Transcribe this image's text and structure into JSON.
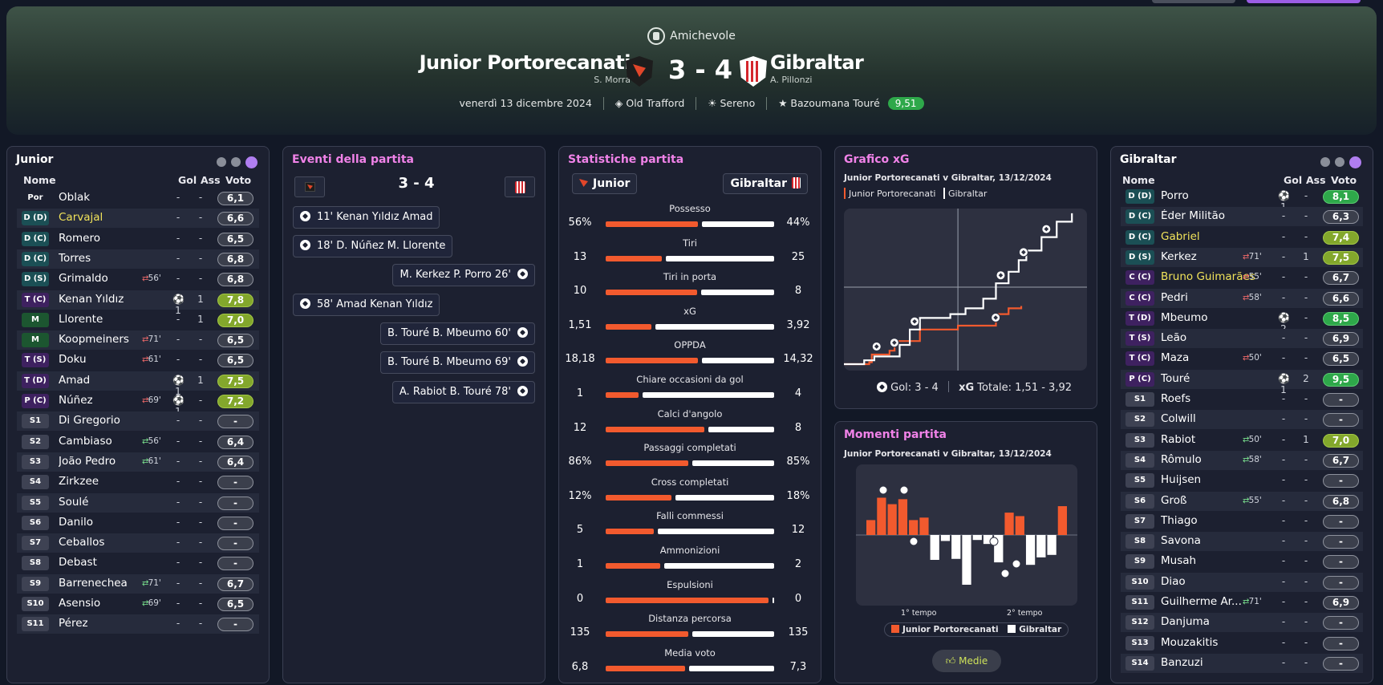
{
  "header": {
    "competition": "Amichevole",
    "home_team": "Junior Portorecanati",
    "home_coach": "S. Morra",
    "away_team": "Gibraltar",
    "away_coach": "A. Pillonzi",
    "score": "3 - 4",
    "date": "venerdì 13 dicembre 2024",
    "stadium": "Old Trafford",
    "weather": "Sereno",
    "potm_name": "Bazoumana Touré",
    "potm_rating": "9,51"
  },
  "home_panel": {
    "title": "Junior",
    "col_name": "Nome",
    "col_goals": "Gol",
    "col_assists": "Ass",
    "col_rating": "Voto",
    "players": [
      {
        "pos": "Por",
        "name": "Oblak",
        "sub": "",
        "goals": "-",
        "assists": "-",
        "rating": "6,1",
        "pc": "gk",
        "rc": "",
        "hl": false
      },
      {
        "pos": "D (D)",
        "name": "Carvajal",
        "sub": "",
        "goals": "-",
        "assists": "-",
        "rating": "6,6",
        "pc": "def",
        "rc": "",
        "hl": true
      },
      {
        "pos": "D (C)",
        "name": "Romero",
        "sub": "",
        "goals": "-",
        "assists": "-",
        "rating": "6,5",
        "pc": "def",
        "rc": "",
        "hl": false
      },
      {
        "pos": "D (C)",
        "name": "Torres",
        "sub": "",
        "goals": "-",
        "assists": "-",
        "rating": "6,8",
        "pc": "def",
        "rc": "",
        "hl": false
      },
      {
        "pos": "D (S)",
        "name": "Grimaldo",
        "sub": "56'",
        "subdir": "out",
        "goals": "-",
        "assists": "-",
        "rating": "6,8",
        "pc": "def",
        "rc": "",
        "hl": false
      },
      {
        "pos": "T (C)",
        "name": "Kenan Yıldız",
        "sub": "",
        "goals": "⚽1",
        "assists": "1",
        "rating": "7,8",
        "pc": "att",
        "rc": "y",
        "hl": false
      },
      {
        "pos": "M",
        "name": "Llorente",
        "sub": "",
        "goals": "-",
        "assists": "1",
        "rating": "7,0",
        "pc": "mid",
        "rc": "y",
        "hl": false
      },
      {
        "pos": "M",
        "name": "Koopmeiners",
        "sub": "71'",
        "subdir": "out",
        "goals": "-",
        "assists": "-",
        "rating": "6,5",
        "pc": "mid",
        "rc": "",
        "hl": false
      },
      {
        "pos": "T (S)",
        "name": "Doku",
        "sub": "61'",
        "subdir": "out",
        "goals": "-",
        "assists": "-",
        "rating": "6,5",
        "pc": "att",
        "rc": "",
        "hl": false
      },
      {
        "pos": "T (D)",
        "name": "Amad",
        "sub": "",
        "goals": "⚽1",
        "assists": "1",
        "rating": "7,5",
        "pc": "att",
        "rc": "y",
        "hl": false
      },
      {
        "pos": "P (C)",
        "name": "Núñez",
        "sub": "69'",
        "subdir": "out",
        "goals": "⚽1",
        "assists": "-",
        "rating": "7,2",
        "pc": "att",
        "rc": "y",
        "hl": false
      },
      {
        "pos": "S1",
        "name": "Di Gregorio",
        "sub": "",
        "goals": "-",
        "assists": "-",
        "rating": "-",
        "pc": "sub",
        "rc": "",
        "hl": false
      },
      {
        "pos": "S2",
        "name": "Cambiaso",
        "sub": "56'",
        "subdir": "in",
        "goals": "-",
        "assists": "-",
        "rating": "6,4",
        "pc": "sub",
        "rc": "",
        "hl": false
      },
      {
        "pos": "S3",
        "name": "João Pedro",
        "sub": "61'",
        "subdir": "in",
        "goals": "-",
        "assists": "-",
        "rating": "6,4",
        "pc": "sub",
        "rc": "",
        "hl": false
      },
      {
        "pos": "S4",
        "name": "Zirkzee",
        "sub": "",
        "goals": "-",
        "assists": "-",
        "rating": "-",
        "pc": "sub",
        "rc": "",
        "hl": false
      },
      {
        "pos": "S5",
        "name": "Soulé",
        "sub": "",
        "goals": "-",
        "assists": "-",
        "rating": "-",
        "pc": "sub",
        "rc": "",
        "hl": false
      },
      {
        "pos": "S6",
        "name": "Danilo",
        "sub": "",
        "goals": "-",
        "assists": "-",
        "rating": "-",
        "pc": "sub",
        "rc": "",
        "hl": false
      },
      {
        "pos": "S7",
        "name": "Ceballos",
        "sub": "",
        "goals": "-",
        "assists": "-",
        "rating": "-",
        "pc": "sub",
        "rc": "",
        "hl": false
      },
      {
        "pos": "S8",
        "name": "Debast",
        "sub": "",
        "goals": "-",
        "assists": "-",
        "rating": "-",
        "pc": "sub",
        "rc": "",
        "hl": false
      },
      {
        "pos": "S9",
        "name": "Barrenechea",
        "sub": "71'",
        "subdir": "in",
        "goals": "-",
        "assists": "-",
        "rating": "6,7",
        "pc": "sub",
        "rc": "",
        "hl": false
      },
      {
        "pos": "S10",
        "name": "Asensio",
        "sub": "69'",
        "subdir": "in",
        "goals": "-",
        "assists": "-",
        "rating": "6,5",
        "pc": "sub",
        "rc": "",
        "hl": false
      },
      {
        "pos": "S11",
        "name": "Pérez",
        "sub": "",
        "goals": "-",
        "assists": "-",
        "rating": "-",
        "pc": "sub",
        "rc": "",
        "hl": false
      }
    ]
  },
  "away_panel": {
    "title": "Gibraltar",
    "col_name": "Nome",
    "col_goals": "Gol",
    "col_assists": "Ass",
    "col_rating": "Voto",
    "players": [
      {
        "pos": "D (D)",
        "name": "Porro",
        "sub": "",
        "goals": "⚽1",
        "assists": "-",
        "rating": "8,1",
        "pc": "def",
        "rc": "g",
        "hl": false
      },
      {
        "pos": "D (C)",
        "name": "Éder Militão",
        "sub": "",
        "goals": "-",
        "assists": "-",
        "rating": "6,3",
        "pc": "def",
        "rc": "",
        "hl": false
      },
      {
        "pos": "D (C)",
        "name": "Gabriel",
        "sub": "",
        "goals": "-",
        "assists": "-",
        "rating": "7,4",
        "pc": "def",
        "rc": "y",
        "hl": true
      },
      {
        "pos": "D (S)",
        "name": "Kerkez",
        "sub": "71'",
        "subdir": "out",
        "goals": "-",
        "assists": "1",
        "rating": "7,5",
        "pc": "def",
        "rc": "y",
        "hl": false
      },
      {
        "pos": "C (C)",
        "name": "Bruno Guimarães",
        "sub": "55'",
        "subdir": "out",
        "goals": "-",
        "assists": "-",
        "rating": "6,7",
        "pc": "att",
        "rc": "",
        "hl": true
      },
      {
        "pos": "C (C)",
        "name": "Pedri",
        "sub": "58'",
        "subdir": "out",
        "goals": "-",
        "assists": "-",
        "rating": "6,6",
        "pc": "att",
        "rc": "",
        "hl": false
      },
      {
        "pos": "T (D)",
        "name": "Mbeumo",
        "sub": "",
        "goals": "⚽2",
        "assists": "-",
        "rating": "8,5",
        "pc": "att",
        "rc": "g",
        "hl": false
      },
      {
        "pos": "T (S)",
        "name": "Leão",
        "sub": "",
        "goals": "-",
        "assists": "-",
        "rating": "6,9",
        "pc": "att",
        "rc": "",
        "hl": false
      },
      {
        "pos": "T (C)",
        "name": "Maza",
        "sub": "50'",
        "subdir": "out",
        "goals": "-",
        "assists": "-",
        "rating": "6,5",
        "pc": "att",
        "rc": "",
        "hl": false
      },
      {
        "pos": "P (C)",
        "name": "Touré",
        "sub": "",
        "goals": "⚽1",
        "assists": "2",
        "rating": "9,5",
        "pc": "att",
        "rc": "g",
        "hl": false
      },
      {
        "pos": "S1",
        "name": "Roefs",
        "sub": "",
        "goals": "-",
        "assists": "-",
        "rating": "-",
        "pc": "sub",
        "rc": "",
        "hl": false
      },
      {
        "pos": "S2",
        "name": "Colwill",
        "sub": "",
        "goals": "-",
        "assists": "-",
        "rating": "-",
        "pc": "sub",
        "rc": "",
        "hl": false
      },
      {
        "pos": "S3",
        "name": "Rabiot",
        "sub": "50'",
        "subdir": "in",
        "goals": "-",
        "assists": "1",
        "rating": "7,0",
        "pc": "sub",
        "rc": "y",
        "hl": false
      },
      {
        "pos": "S4",
        "name": "Rômulo",
        "sub": "58'",
        "subdir": "in",
        "goals": "-",
        "assists": "-",
        "rating": "6,7",
        "pc": "sub",
        "rc": "",
        "hl": false
      },
      {
        "pos": "S5",
        "name": "Huijsen",
        "sub": "",
        "goals": "-",
        "assists": "-",
        "rating": "-",
        "pc": "sub",
        "rc": "",
        "hl": false
      },
      {
        "pos": "S6",
        "name": "Groß",
        "sub": "55'",
        "subdir": "in",
        "goals": "-",
        "assists": "-",
        "rating": "6,8",
        "pc": "sub",
        "rc": "",
        "hl": false
      },
      {
        "pos": "S7",
        "name": "Thiago",
        "sub": "",
        "goals": "-",
        "assists": "-",
        "rating": "-",
        "pc": "sub",
        "rc": "",
        "hl": false
      },
      {
        "pos": "S8",
        "name": "Savona",
        "sub": "",
        "goals": "-",
        "assists": "-",
        "rating": "-",
        "pc": "sub",
        "rc": "",
        "hl": false
      },
      {
        "pos": "S9",
        "name": "Musah",
        "sub": "",
        "goals": "-",
        "assists": "-",
        "rating": "-",
        "pc": "sub",
        "rc": "",
        "hl": false
      },
      {
        "pos": "S10",
        "name": "Diao",
        "sub": "",
        "goals": "-",
        "assists": "-",
        "rating": "-",
        "pc": "sub",
        "rc": "",
        "hl": false
      },
      {
        "pos": "S11",
        "name": "Guilherme Ar...",
        "sub": "71'",
        "subdir": "in",
        "goals": "-",
        "assists": "-",
        "rating": "6,9",
        "pc": "sub",
        "rc": "",
        "hl": false
      },
      {
        "pos": "S12",
        "name": "Danjuma",
        "sub": "",
        "goals": "-",
        "assists": "-",
        "rating": "-",
        "pc": "sub",
        "rc": "",
        "hl": false
      },
      {
        "pos": "S13",
        "name": "Mouzakitis",
        "sub": "",
        "goals": "-",
        "assists": "-",
        "rating": "-",
        "pc": "sub",
        "rc": "",
        "hl": false
      },
      {
        "pos": "S14",
        "name": "Banzuzi",
        "sub": "",
        "goals": "-",
        "assists": "-",
        "rating": "-",
        "pc": "sub",
        "rc": "",
        "hl": false
      }
    ]
  },
  "events_panel": {
    "title": "Eventi della partita",
    "score": "3 - 4",
    "events": [
      {
        "side": "home",
        "text": "11' Kenan Yıldız Amad"
      },
      {
        "side": "home",
        "text": "18' D. Núñez M. Llorente"
      },
      {
        "side": "away",
        "text": "M. Kerkez P. Porro 26'"
      },
      {
        "side": "home",
        "text": "58' Amad Kenan Yıldız"
      },
      {
        "side": "away",
        "text": "B. Touré B. Mbeumo 60'"
      },
      {
        "side": "away",
        "text": "B. Touré B. Mbeumo 69'"
      },
      {
        "side": "away",
        "text": "A. Rabiot B. Touré 78'"
      }
    ]
  },
  "stats_panel": {
    "title": "Statistiche partita",
    "home_label": "Junior",
    "away_label": "Gibraltar",
    "stats": [
      {
        "label": "Possesso",
        "home": "56%",
        "away": "44%",
        "hv": 56,
        "av": 44
      },
      {
        "label": "Tiri",
        "home": "13",
        "away": "25",
        "hv": 13,
        "av": 25
      },
      {
        "label": "Tiri in porta",
        "home": "10",
        "away": "8",
        "hv": 10,
        "av": 8
      },
      {
        "label": "xG",
        "home": "1,51",
        "away": "3,92",
        "hv": 1.51,
        "av": 3.92
      },
      {
        "label": "OPPDA",
        "home": "18,18",
        "away": "14,32",
        "hv": 18.18,
        "av": 14.32
      },
      {
        "label": "Chiare occasioni da gol",
        "home": "1",
        "away": "4",
        "hv": 1,
        "av": 4
      },
      {
        "label": "Calci d'angolo",
        "home": "12",
        "away": "8",
        "hv": 12,
        "av": 8
      },
      {
        "label": "Passaggi completati",
        "home": "86%",
        "away": "85%",
        "hv": 86,
        "av": 85
      },
      {
        "label": "Cross completati",
        "home": "12%",
        "away": "18%",
        "hv": 12,
        "av": 18
      },
      {
        "label": "Falli commessi",
        "home": "5",
        "away": "12",
        "hv": 5,
        "av": 12
      },
      {
        "label": "Ammonizioni",
        "home": "1",
        "away": "2",
        "hv": 1,
        "av": 2
      },
      {
        "label": "Espulsioni",
        "home": "0",
        "away": "0",
        "hv": 0,
        "av": 0
      },
      {
        "label": "Distanza percorsa",
        "home": "135",
        "away": "135",
        "hv": 135,
        "av": 135
      },
      {
        "label": "Media voto",
        "home": "6,8",
        "away": "7,3",
        "hv": 6.8,
        "av": 7.3
      }
    ]
  },
  "xg_panel": {
    "title": "Grafico xG",
    "subtitle": "Junior Portorecanati v Gibraltar, 13/12/2024",
    "legend_home": "Junior Portorecanati",
    "legend_away": "Gibraltar",
    "footer_goals_label": "Gol: 3 - 4",
    "footer_xg_bold": "xG",
    "footer_xg_text": "Totale: 1,51 - 3,92"
  },
  "moments_panel": {
    "title": "Momenti partita",
    "subtitle": "Junior Portorecanati v Gibraltar, 13/12/2024",
    "half1": "1° tempo",
    "half2": "2° tempo",
    "legend_home": "Junior Portorecanati",
    "legend_away": "Gibraltar",
    "button": "Medie"
  },
  "colors": {
    "home": "#f25a2e",
    "away": "#ffffff",
    "accent": "#b07ef0",
    "title_pink": "#f082e8"
  },
  "chart_data": [
    {
      "type": "line",
      "title": "Grafico xG",
      "xlim": [
        0,
        95
      ],
      "ylim": [
        0,
        4
      ],
      "series": [
        {
          "name": "Junior Portorecanati",
          "x": [
            0,
            10,
            11,
            18,
            20,
            30,
            45,
            58,
            60,
            65,
            70
          ],
          "y": [
            0,
            0.05,
            0.25,
            0.35,
            0.6,
            0.9,
            1.0,
            1.0,
            1.3,
            1.45,
            1.51
          ]
        },
        {
          "name": "Gibraltar",
          "x": [
            0,
            8,
            12,
            22,
            26,
            30,
            42,
            48,
            55,
            60,
            65,
            69,
            72,
            78,
            84,
            90
          ],
          "y": [
            0,
            0.1,
            0.2,
            0.5,
            0.9,
            1.2,
            1.3,
            1.45,
            1.7,
            2.1,
            2.4,
            2.7,
            2.95,
            3.3,
            3.7,
            3.92
          ]
        }
      ],
      "goals": [
        {
          "team": "Gibraltar",
          "minute": 26
        },
        {
          "team": "Junior Portorecanati",
          "minute": 11
        },
        {
          "team": "Junior Portorecanati",
          "minute": 18
        },
        {
          "team": "Junior Portorecanati",
          "minute": 58
        },
        {
          "team": "Gibraltar",
          "minute": 60
        },
        {
          "team": "Gibraltar",
          "minute": 69
        },
        {
          "team": "Gibraltar",
          "minute": 78
        }
      ]
    },
    {
      "type": "bar",
      "title": "Momenti partita",
      "categories": [
        "1",
        "2",
        "3",
        "4",
        "5",
        "6",
        "7",
        "8",
        "9",
        "10",
        "11",
        "12",
        "13",
        "14",
        "15",
        "16",
        "17",
        "18",
        "19"
      ],
      "series": [
        {
          "name": "Junior Portorecanati",
          "values": [
            0.3,
            0.75,
            0.62,
            0.72,
            0.3,
            0.35,
            0,
            0,
            0,
            0,
            0,
            0,
            0,
            0.45,
            0.38,
            0,
            0,
            0,
            0.58
          ]
        },
        {
          "name": "Gibraltar",
          "values": [
            0,
            0,
            0,
            0,
            0,
            0,
            0.5,
            0.12,
            0.48,
            1.0,
            0.1,
            0.18,
            0.55,
            0,
            0,
            0.6,
            0.45,
            0.4,
            0
          ]
        }
      ]
    }
  ]
}
